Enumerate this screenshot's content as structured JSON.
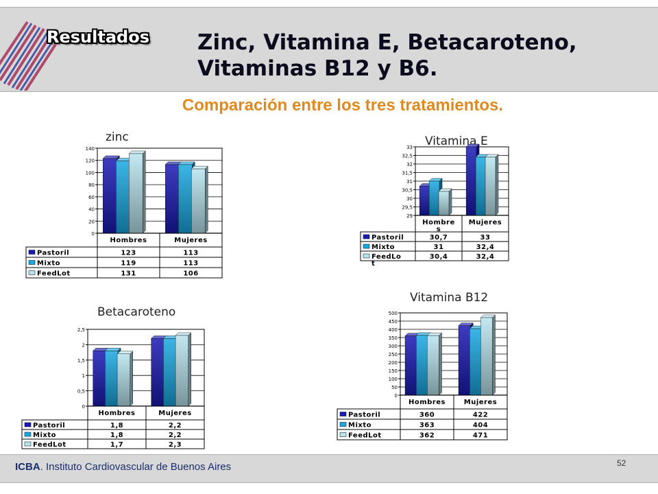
{
  "slide": {
    "section_label": "Resultados",
    "title_line1": "Zinc, Vitamina E, Betacaroteno,",
    "title_line2": "Vitaminas B12 y B6.",
    "subtitle": "Comparación entre los tres tratamientos.",
    "footer_org_strong": "ICBA",
    "footer_org_rest": ". Instituto Cardiovascular de Buenos Aires",
    "page_number": "52"
  },
  "colors": {
    "pastoril": "#1a1ab4",
    "mixto": "#1aa8e0",
    "feedlot": "#b8e4ee",
    "subtitle": "#e08a1e",
    "band": "#d8d8d8"
  },
  "chart_data": [
    {
      "type": "bar",
      "title": "zinc",
      "categories": [
        "Hombres",
        "Mujeres"
      ],
      "series": [
        {
          "name": "Pastoril",
          "values": [
            123,
            113
          ],
          "labels": [
            "123",
            "113"
          ]
        },
        {
          "name": "Mixto",
          "values": [
            119,
            113
          ],
          "labels": [
            "119",
            "113"
          ]
        },
        {
          "name": "FeedLot",
          "values": [
            131,
            106
          ],
          "labels": [
            "131",
            "106"
          ]
        }
      ],
      "ylim": [
        0,
        140
      ],
      "yticks": [
        "0",
        "20",
        "40",
        "60",
        "80",
        "100",
        "120",
        "140"
      ]
    },
    {
      "type": "bar",
      "title": "Vitamina E",
      "categories": [
        "Hombre s",
        "Mujeres"
      ],
      "series": [
        {
          "name": "Pastoril",
          "values": [
            30.7,
            33
          ],
          "labels": [
            "30,7",
            "33"
          ]
        },
        {
          "name": "Mixto",
          "values": [
            31,
            32.4
          ],
          "labels": [
            "31",
            "32,4"
          ]
        },
        {
          "name": "FeedLo t",
          "values": [
            30.4,
            32.4
          ],
          "labels": [
            "30,4",
            "32,4"
          ]
        }
      ],
      "ylim": [
        29,
        33
      ],
      "yticks": [
        "29",
        "29,5",
        "30",
        "30,5",
        "31",
        "31,5",
        "32",
        "32,5",
        "33"
      ]
    },
    {
      "type": "bar",
      "title": "Betacaroteno",
      "categories": [
        "Hombres",
        "Mujeres"
      ],
      "series": [
        {
          "name": "Pastoril",
          "values": [
            1.8,
            2.2
          ],
          "labels": [
            "1,8",
            "2,2"
          ]
        },
        {
          "name": "Mixto",
          "values": [
            1.8,
            2.2
          ],
          "labels": [
            "1,8",
            "2,2"
          ]
        },
        {
          "name": "FeedLot",
          "values": [
            1.7,
            2.3
          ],
          "labels": [
            "1,7",
            "2,3"
          ]
        }
      ],
      "ylim": [
        0,
        2.5
      ],
      "yticks": [
        "0",
        "0,5",
        "1",
        "1,5",
        "2",
        "2,5"
      ]
    },
    {
      "type": "bar",
      "title": "Vitamina B12",
      "categories": [
        "Hombres",
        "Mujeres"
      ],
      "series": [
        {
          "name": "Pastoril",
          "values": [
            360,
            422
          ],
          "labels": [
            "360",
            "422"
          ]
        },
        {
          "name": "Mixto",
          "values": [
            363,
            404
          ],
          "labels": [
            "363",
            "404"
          ]
        },
        {
          "name": "FeedLot",
          "values": [
            362,
            471
          ],
          "labels": [
            "362",
            "471"
          ]
        }
      ],
      "ylim": [
        0,
        500
      ],
      "yticks": [
        "0",
        "50",
        "100",
        "150",
        "200",
        "250",
        "300",
        "350",
        "400",
        "450",
        "500"
      ]
    }
  ]
}
